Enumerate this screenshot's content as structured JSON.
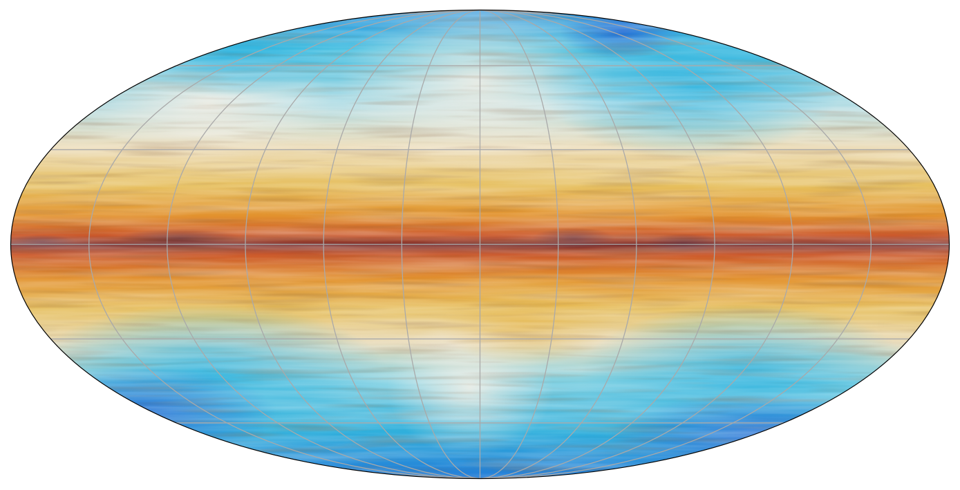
{
  "map": {
    "projection": "mollweide",
    "coordinate_frame": "galactic",
    "graticule": {
      "latitude_lines_deg": [
        -60,
        -30,
        0,
        30,
        60
      ],
      "longitude_lines_deg": [
        -150,
        -120,
        -90,
        -60,
        -30,
        0,
        30,
        60,
        90,
        120,
        150
      ],
      "color": "#a9a9a9"
    },
    "outline_color": "#000000",
    "colormap": [
      "#1f6fd6",
      "#33b6de",
      "#9fdce6",
      "#efe3c8",
      "#e9c467",
      "#e39a2c",
      "#d8632c",
      "#b0412a",
      "#5a2430"
    ],
    "texture": "magnetic-field-streamlines"
  }
}
